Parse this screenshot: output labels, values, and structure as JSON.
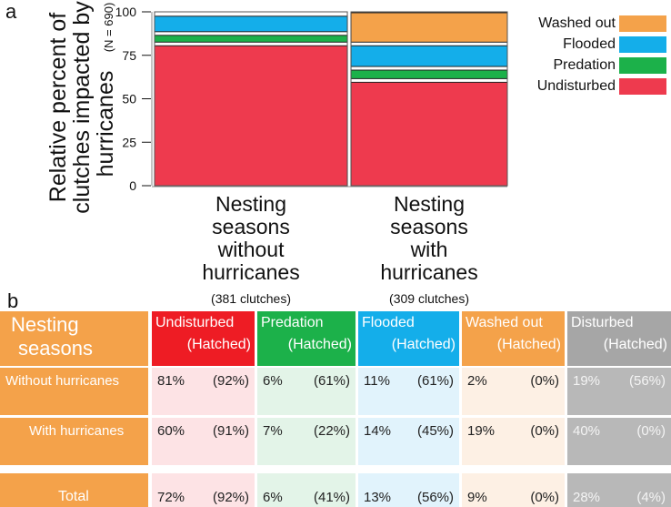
{
  "panel_a_letter": "a",
  "panel_b_letter": "b",
  "chart_data": {
    "type": "bar",
    "stacked": true,
    "mosaic": true,
    "ylabel_line1": "Relative percent of",
    "ylabel_line2": "clutches impacted by",
    "ylabel_line3": "hurricanes",
    "ylabel_n": "(N = 690)",
    "ylim": [
      0,
      100
    ],
    "yticks": [
      "0",
      "25",
      "50",
      "75",
      "100"
    ],
    "categories": [
      {
        "lines": [
          "Nesting",
          "seasons",
          "without",
          "hurricanes"
        ],
        "clutches": "(381 clutches)",
        "n": 381
      },
      {
        "lines": [
          "Nesting",
          "seasons",
          "with",
          "hurricanes"
        ],
        "clutches": "(309 clutches)",
        "n": 309
      }
    ],
    "series": [
      {
        "name": "Undisturbed",
        "color": "#ee3a4e",
        "values": [
          81,
          60
        ]
      },
      {
        "name": "Predation",
        "color": "#1cb14a",
        "values": [
          6,
          7
        ]
      },
      {
        "name": "Flooded",
        "color": "#14aeea",
        "values": [
          11,
          14
        ]
      },
      {
        "name": "Washed out",
        "color": "#f4a24a",
        "values": [
          2,
          19
        ]
      }
    ],
    "legend": [
      "Washed out",
      "Flooded",
      "Predation",
      "Undisturbed"
    ]
  },
  "table": {
    "header_first": [
      "Nesting",
      "seasons"
    ],
    "columns": [
      {
        "name": "Undisturbed",
        "sub": "(Hatched)",
        "color": "#ee1c24",
        "bg": "#fde3e5"
      },
      {
        "name": "Predation",
        "sub": "(Hatched)",
        "color": "#1cb14a",
        "bg": "#e3f4e8"
      },
      {
        "name": "Flooded",
        "sub": "(Hatched)",
        "color": "#14aeea",
        "bg": "#e1f3fc"
      },
      {
        "name": "Washed out",
        "sub": "(Hatched)",
        "color": "#f4a24a",
        "bg": "#fdf0e4"
      },
      {
        "name": "Disturbed",
        "sub": "(Hatched)",
        "color": "#a6a6a6",
        "bg": "#b8b8b8"
      }
    ],
    "row_label_bg": "#f4a24a",
    "rows": [
      {
        "label": "Without hurricanes",
        "cells": [
          [
            "81%",
            "(92%)"
          ],
          [
            "6%",
            "(61%)"
          ],
          [
            "11%",
            "(61%)"
          ],
          [
            "2%",
            "(0%)"
          ],
          [
            "19%",
            "(56%)"
          ]
        ]
      },
      {
        "label": "With hurricanes",
        "cells": [
          [
            "60%",
            "(91%)"
          ],
          [
            "7%",
            "(22%)"
          ],
          [
            "14%",
            "(45%)"
          ],
          [
            "19%",
            "(0%)"
          ],
          [
            "40%",
            "(0%)"
          ]
        ]
      },
      {
        "label": "Total",
        "cells": [
          [
            "72%",
            "(92%)"
          ],
          [
            "6%",
            "(41%)"
          ],
          [
            "13%",
            "(56%)"
          ],
          [
            "9%",
            "(0%)"
          ],
          [
            "28%",
            "(4%)"
          ]
        ]
      }
    ]
  }
}
